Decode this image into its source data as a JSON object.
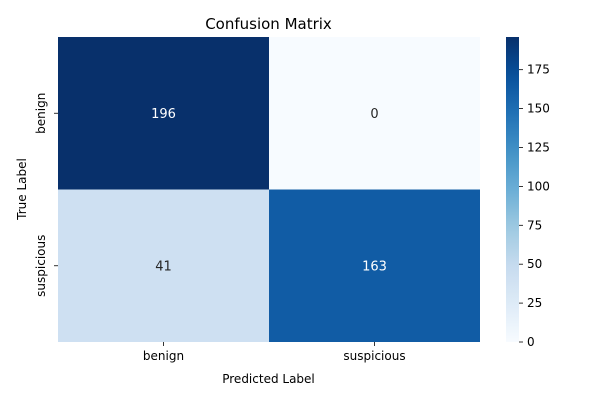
{
  "chart_data": {
    "type": "heatmap",
    "title": "Confusion Matrix",
    "xlabel": "Predicted Label",
    "ylabel": "True Label",
    "x_categories": [
      "benign",
      "suspicious"
    ],
    "y_categories": [
      "benign",
      "suspicious"
    ],
    "values": [
      [
        196,
        0
      ],
      [
        41,
        163
      ]
    ],
    "colormap": "Blues",
    "color_range": [
      0,
      196
    ],
    "colorbar": {
      "ticks": [
        0,
        25,
        50,
        75,
        100,
        125,
        150,
        175
      ],
      "tick_labels": [
        "0",
        "25",
        "50",
        "75",
        "100",
        "125",
        "150",
        "175"
      ]
    },
    "cell_labels": [
      [
        "196",
        "0"
      ],
      [
        "41",
        "163"
      ]
    ]
  }
}
